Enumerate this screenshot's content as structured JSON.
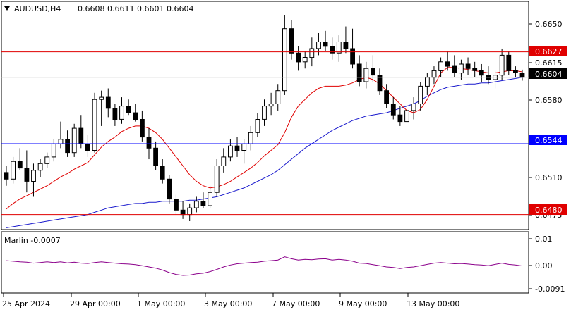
{
  "header": {
    "symbol_timeframe": "AUDUSD,H4",
    "ohlc": "0.6608 0.6611 0.6601 0.6604"
  },
  "indicator": {
    "label": "Marlin -0.0007",
    "ticks": [
      "0.01",
      "0.00",
      "-0.0091"
    ]
  },
  "price_axis": {
    "ticks": [
      "0.6650",
      "0.6615",
      "0.6580",
      "0.6510",
      "0.6475"
    ],
    "range": [
      0.6467,
      0.6672
    ]
  },
  "time_axis": {
    "labels": [
      "25 Apr 2024",
      "29 Apr 00:00",
      "1 May 00:00",
      "3 May 00:00",
      "7 May 00:00",
      "9 May 00:00",
      "13 May 00:00"
    ]
  },
  "levels": [
    {
      "value": "0.6627",
      "color": "#e00000"
    },
    {
      "value": "0.6544",
      "color": "#0000ff"
    },
    {
      "value": "0.6480",
      "color": "#e00000"
    }
  ],
  "current_price": {
    "value": "0.6604"
  },
  "colors": {
    "ma_fast": "#e00000",
    "ma_slow": "#1a1acd",
    "marlin": "#8b008b",
    "bull": "#ffffff",
    "bear": "#000000",
    "grid": "#c8c8c8"
  },
  "chart_data": {
    "type": "candlestick",
    "instrument": "AUDUSD",
    "timeframe": "H4",
    "candles": [
      [
        0.6518,
        0.6524,
        0.6506,
        0.6512
      ],
      [
        0.6512,
        0.6532,
        0.6508,
        0.6528
      ],
      [
        0.6528,
        0.654,
        0.652,
        0.6522
      ],
      [
        0.6522,
        0.6538,
        0.65,
        0.651
      ],
      [
        0.651,
        0.6526,
        0.6496,
        0.652
      ],
      [
        0.652,
        0.653,
        0.6514,
        0.6526
      ],
      [
        0.6526,
        0.6536,
        0.6522,
        0.6532
      ],
      [
        0.6532,
        0.6548,
        0.6528,
        0.6544
      ],
      [
        0.6544,
        0.6564,
        0.654,
        0.6548
      ],
      [
        0.6548,
        0.6556,
        0.6532,
        0.6536
      ],
      [
        0.6536,
        0.6562,
        0.6532,
        0.6558
      ],
      [
        0.6558,
        0.657,
        0.654,
        0.6544
      ],
      [
        0.6544,
        0.6552,
        0.6532,
        0.6538
      ],
      [
        0.6538,
        0.659,
        0.6536,
        0.6584
      ],
      [
        0.6584,
        0.6592,
        0.656,
        0.6586
      ],
      [
        0.6586,
        0.6594,
        0.6568,
        0.6576
      ],
      [
        0.6576,
        0.658,
        0.656,
        0.6566
      ],
      [
        0.6566,
        0.6586,
        0.6562,
        0.6578
      ],
      [
        0.6578,
        0.6584,
        0.657,
        0.6572
      ],
      [
        0.6572,
        0.658,
        0.6564,
        0.6566
      ],
      [
        0.6566,
        0.6574,
        0.6546,
        0.655
      ],
      [
        0.655,
        0.6558,
        0.653,
        0.654
      ],
      [
        0.654,
        0.6546,
        0.652,
        0.6524
      ],
      [
        0.6524,
        0.653,
        0.6508,
        0.6512
      ],
      [
        0.6512,
        0.6516,
        0.649,
        0.6494
      ],
      [
        0.6494,
        0.6498,
        0.648,
        0.6484
      ],
      [
        0.6484,
        0.6492,
        0.6476,
        0.648
      ],
      [
        0.648,
        0.649,
        0.6474,
        0.6486
      ],
      [
        0.6486,
        0.6496,
        0.6482,
        0.6492
      ],
      [
        0.6492,
        0.65,
        0.6486,
        0.6488
      ],
      [
        0.6488,
        0.6506,
        0.6486,
        0.65
      ],
      [
        0.65,
        0.653,
        0.6496,
        0.6524
      ],
      [
        0.6524,
        0.654,
        0.6518,
        0.6532
      ],
      [
        0.6532,
        0.6548,
        0.6528,
        0.6542
      ],
      [
        0.6542,
        0.655,
        0.6532,
        0.6538
      ],
      [
        0.6538,
        0.6548,
        0.6526,
        0.6544
      ],
      [
        0.6544,
        0.656,
        0.6538,
        0.6554
      ],
      [
        0.6554,
        0.6572,
        0.655,
        0.6566
      ],
      [
        0.6566,
        0.6584,
        0.656,
        0.6578
      ],
      [
        0.6578,
        0.659,
        0.657,
        0.658
      ],
      [
        0.658,
        0.6598,
        0.6574,
        0.6592
      ],
      [
        0.6592,
        0.666,
        0.6588,
        0.6648
      ],
      [
        0.6648,
        0.6656,
        0.662,
        0.6626
      ],
      [
        0.6626,
        0.6632,
        0.661,
        0.6618
      ],
      [
        0.6618,
        0.6628,
        0.6612,
        0.6622
      ],
      [
        0.6622,
        0.664,
        0.6614,
        0.663
      ],
      [
        0.663,
        0.6644,
        0.6624,
        0.6636
      ],
      [
        0.6636,
        0.6646,
        0.6628,
        0.6632
      ],
      [
        0.6632,
        0.664,
        0.662,
        0.6626
      ],
      [
        0.6626,
        0.6642,
        0.6618,
        0.6636
      ],
      [
        0.6636,
        0.665,
        0.6626,
        0.663
      ],
      [
        0.663,
        0.6648,
        0.6612,
        0.6616
      ],
      [
        0.6616,
        0.6624,
        0.6596,
        0.66
      ],
      [
        0.66,
        0.6618,
        0.6594,
        0.6612
      ],
      [
        0.6612,
        0.6624,
        0.66,
        0.6606
      ],
      [
        0.6606,
        0.6612,
        0.6588,
        0.6592
      ],
      [
        0.6592,
        0.6598,
        0.6576,
        0.658
      ],
      [
        0.658,
        0.6586,
        0.6566,
        0.657
      ],
      [
        0.657,
        0.6578,
        0.656,
        0.6564
      ],
      [
        0.6564,
        0.6578,
        0.656,
        0.6574
      ],
      [
        0.6574,
        0.6586,
        0.6566,
        0.658
      ],
      [
        0.658,
        0.66,
        0.6574,
        0.6596
      ],
      [
        0.6596,
        0.6608,
        0.6588,
        0.6604
      ],
      [
        0.6604,
        0.6614,
        0.6598,
        0.661
      ],
      [
        0.661,
        0.6622,
        0.6604,
        0.6618
      ],
      [
        0.6618,
        0.6628,
        0.661,
        0.6614
      ],
      [
        0.6614,
        0.6624,
        0.6604,
        0.6608
      ],
      [
        0.6608,
        0.662,
        0.6602,
        0.6616
      ],
      [
        0.6616,
        0.6622,
        0.6606,
        0.6612
      ],
      [
        0.6612,
        0.6618,
        0.6604,
        0.661
      ],
      [
        0.661,
        0.6616,
        0.66,
        0.6606
      ],
      [
        0.6606,
        0.6614,
        0.6598,
        0.6602
      ],
      [
        0.6602,
        0.661,
        0.6594,
        0.6606
      ],
      [
        0.6606,
        0.663,
        0.6602,
        0.6624
      ],
      [
        0.6624,
        0.6628,
        0.6606,
        0.661
      ],
      [
        0.661,
        0.6614,
        0.6604,
        0.6608
      ],
      [
        0.6608,
        0.6611,
        0.6601,
        0.6604
      ]
    ],
    "ma_fast_values": [
      0.6485,
      0.649,
      0.6494,
      0.6497,
      0.65,
      0.6503,
      0.6506,
      0.651,
      0.6514,
      0.6517,
      0.6521,
      0.6524,
      0.6527,
      0.6534,
      0.6541,
      0.6546,
      0.655,
      0.6555,
      0.6558,
      0.656,
      0.656,
      0.6558,
      0.6554,
      0.6548,
      0.654,
      0.6532,
      0.6524,
      0.6516,
      0.651,
      0.6506,
      0.6504,
      0.6505,
      0.6507,
      0.651,
      0.6514,
      0.6518,
      0.6522,
      0.6527,
      0.6533,
      0.6538,
      0.6543,
      0.6554,
      0.6568,
      0.6578,
      0.6584,
      0.659,
      0.6594,
      0.6596,
      0.6596,
      0.6596,
      0.6597,
      0.6599,
      0.6602,
      0.6604,
      0.6602,
      0.6598,
      0.6592,
      0.6586,
      0.658,
      0.6574,
      0.6572,
      0.6575,
      0.6584,
      0.6596,
      0.6608,
      0.6613,
      0.6613,
      0.6612,
      0.6611,
      0.661,
      0.6609,
      0.6608,
      0.6608,
      0.6609,
      0.661,
      0.661,
      0.6609
    ],
    "ma_slow_values": [
      0.6468,
      0.6469,
      0.647,
      0.6471,
      0.6472,
      0.6473,
      0.6474,
      0.6475,
      0.6476,
      0.6477,
      0.6478,
      0.6479,
      0.648,
      0.6482,
      0.6484,
      0.6486,
      0.6487,
      0.6488,
      0.6489,
      0.649,
      0.649,
      0.6491,
      0.6491,
      0.6492,
      0.6492,
      0.6492,
      0.6492,
      0.6493,
      0.6493,
      0.6494,
      0.6495,
      0.6496,
      0.6498,
      0.65,
      0.6502,
      0.6504,
      0.6507,
      0.651,
      0.6513,
      0.6516,
      0.652,
      0.6525,
      0.653,
      0.6535,
      0.654,
      0.6544,
      0.6548,
      0.6552,
      0.6556,
      0.6559,
      0.6562,
      0.6565,
      0.6567,
      0.6569,
      0.657,
      0.6571,
      0.6572,
      0.6574,
      0.6576,
      0.6578,
      0.658,
      0.6583,
      0.6587,
      0.659,
      0.6593,
      0.6595,
      0.6596,
      0.6597,
      0.6598,
      0.6598,
      0.6599,
      0.6599,
      0.66,
      0.6601,
      0.6602,
      0.6603,
      0.6604
    ],
    "marlin_values": [
      0.001,
      0.0008,
      0.0006,
      0.0005,
      0.0002,
      0.0004,
      0.0006,
      0.0004,
      0.0006,
      0.0003,
      0.0005,
      0.0002,
      0.0001,
      0.0004,
      0.0006,
      0.0004,
      0.0002,
      0.0,
      -0.0001,
      -0.0003,
      -0.0006,
      -0.001,
      -0.0014,
      -0.002,
      -0.0028,
      -0.0034,
      -0.0037,
      -0.0036,
      -0.0032,
      -0.003,
      -0.0025,
      -0.0018,
      -0.001,
      -0.0004,
      0.0,
      0.0002,
      0.0004,
      0.0005,
      0.0008,
      0.001,
      0.0012,
      0.0022,
      0.0016,
      0.0012,
      0.0014,
      0.0013,
      0.0015,
      0.0016,
      0.0012,
      0.0014,
      0.0012,
      0.0008,
      0.0002,
      0.0001,
      -0.0003,
      -0.0006,
      -0.001,
      -0.0012,
      -0.0015,
      -0.0012,
      -0.001,
      -0.0006,
      -0.0002,
      0.0002,
      0.0004,
      0.0002,
      0.0,
      0.0001,
      -0.0001,
      -0.0003,
      -0.0004,
      -0.0006,
      -0.0002,
      0.0002,
      -0.0002,
      -0.0004,
      -0.0007
    ],
    "marlin_range": [
      -0.0091,
      0.01
    ]
  }
}
